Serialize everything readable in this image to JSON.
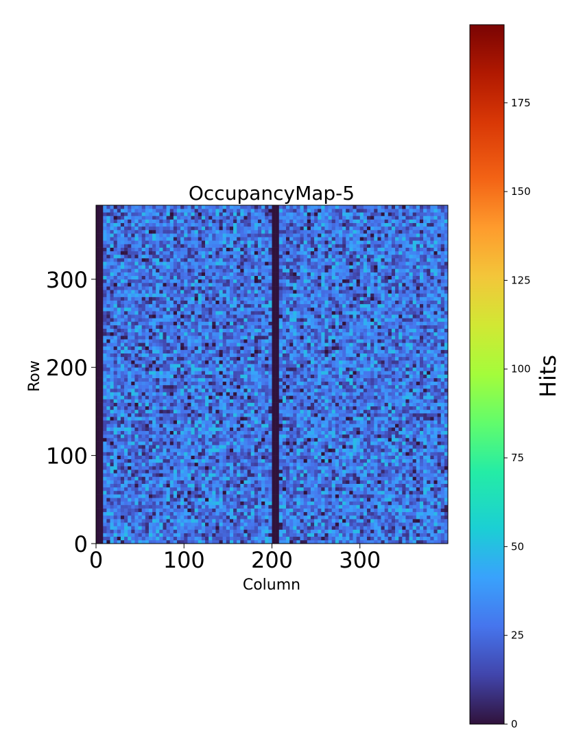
{
  "chart_data": {
    "type": "heatmap",
    "title": "OccupancyMap-5",
    "xlabel": "Column",
    "ylabel": "Row",
    "xlim": [
      0,
      400
    ],
    "ylim": [
      0,
      384
    ],
    "x_ticks": [
      0,
      100,
      200,
      300
    ],
    "y_ticks": [
      0,
      100,
      200,
      300
    ],
    "colorbar": {
      "label": "Hits",
      "range": [
        0,
        197
      ],
      "ticks": [
        0,
        25,
        50,
        75,
        100,
        125,
        150,
        175
      ],
      "colormap": "turbo"
    },
    "pattern": {
      "typical_hits_range": [
        0,
        50
      ],
      "typical_mean_hits": 28,
      "dead_column_bands": [
        [
          0,
          8
        ],
        [
          200,
          208
        ]
      ]
    }
  }
}
